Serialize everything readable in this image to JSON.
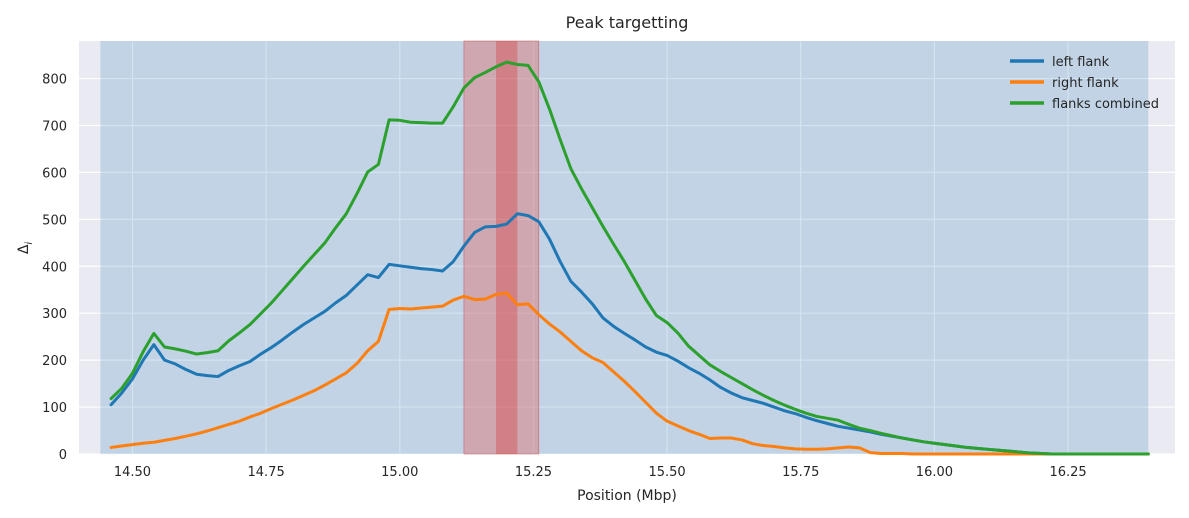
{
  "chart_data": {
    "type": "line",
    "title": "Peak targetting",
    "xlabel": "Position (Mbp)",
    "ylabel_base": "Δ",
    "ylabel_sub": "i",
    "xlim": [
      14.4,
      16.45
    ],
    "ylim": [
      0,
      880
    ],
    "xticks": [
      14.5,
      14.75,
      15.0,
      15.25,
      15.5,
      15.75,
      16.0,
      16.25
    ],
    "xtick_labels": [
      "14.50",
      "14.75",
      "15.00",
      "15.25",
      "15.50",
      "15.75",
      "16.00",
      "16.25"
    ],
    "yticks": [
      0,
      100,
      200,
      300,
      400,
      500,
      600,
      700,
      800
    ],
    "yticks_labels": [
      "0",
      "100",
      "200",
      "300",
      "400",
      "500",
      "600",
      "700",
      "800"
    ],
    "grid": true,
    "legend_position": "top-right",
    "background_color": "#EAEAF2",
    "regions": [
      {
        "name": "scan-region",
        "x0": 14.44,
        "x1": 16.4,
        "color": "#1f77b4",
        "opacity": 0.2
      },
      {
        "name": "confidence-interval",
        "x0": 15.12,
        "x1": 15.26,
        "color": "#e07070",
        "opacity": 0.45
      },
      {
        "name": "peak-interval",
        "x0": 15.18,
        "x1": 15.22,
        "color": "#d62728",
        "opacity": 0.3
      }
    ],
    "series": [
      {
        "name": "left flank",
        "color": "#1f77b4",
        "x": [
          14.46,
          14.48,
          14.5,
          14.52,
          14.54,
          14.56,
          14.58,
          14.6,
          14.62,
          14.64,
          14.66,
          14.68,
          14.7,
          14.72,
          14.74,
          14.76,
          14.78,
          14.8,
          14.82,
          14.84,
          14.86,
          14.88,
          14.9,
          14.92,
          14.94,
          14.96,
          14.98,
          15.0,
          15.02,
          15.04,
          15.06,
          15.08,
          15.1,
          15.12,
          15.14,
          15.16,
          15.18,
          15.2,
          15.22,
          15.24,
          15.26,
          15.28,
          15.3,
          15.32,
          15.34,
          15.36,
          15.38,
          15.4,
          15.42,
          15.44,
          15.46,
          15.48,
          15.5,
          15.52,
          15.54,
          15.56,
          15.58,
          15.6,
          15.62,
          15.64,
          15.66,
          15.68,
          15.7,
          15.72,
          15.74,
          15.76,
          15.78,
          15.8,
          15.82,
          15.84,
          15.86,
          15.88,
          15.9,
          15.92,
          15.94,
          15.96,
          15.98,
          16.0,
          16.02,
          16.04,
          16.06,
          16.08,
          16.1,
          16.12,
          16.14,
          16.16,
          16.18,
          16.2,
          16.22,
          16.24,
          16.26,
          16.28,
          16.3,
          16.32,
          16.34,
          16.36,
          16.38,
          16.4
        ],
        "values": [
          105,
          130,
          160,
          200,
          233,
          200,
          192,
          180,
          170,
          167,
          165,
          178,
          188,
          197,
          213,
          227,
          243,
          260,
          276,
          290,
          304,
          322,
          338,
          360,
          382,
          376,
          404,
          401,
          398,
          395,
          393,
          390,
          410,
          443,
          472,
          484,
          485,
          490,
          512,
          508,
          495,
          458,
          410,
          368,
          345,
          320,
          290,
          272,
          257,
          243,
          228,
          217,
          210,
          198,
          184,
          172,
          158,
          142,
          130,
          120,
          114,
          108,
          100,
          92,
          86,
          78,
          71,
          65,
          59,
          55,
          51,
          47,
          42,
          38,
          34,
          30,
          26,
          23,
          20,
          17,
          14,
          12,
          10,
          8,
          6,
          4,
          2,
          1,
          0,
          0,
          0,
          0,
          0,
          0,
          0,
          0,
          0,
          0
        ]
      },
      {
        "name": "right flank",
        "color": "#ff7f0e",
        "x": [
          14.46,
          14.48,
          14.5,
          14.52,
          14.54,
          14.56,
          14.58,
          14.6,
          14.62,
          14.64,
          14.66,
          14.68,
          14.7,
          14.72,
          14.74,
          14.76,
          14.78,
          14.8,
          14.82,
          14.84,
          14.86,
          14.88,
          14.9,
          14.92,
          14.94,
          14.96,
          14.98,
          15.0,
          15.02,
          15.04,
          15.06,
          15.08,
          15.1,
          15.12,
          15.14,
          15.16,
          15.18,
          15.2,
          15.22,
          15.24,
          15.26,
          15.28,
          15.3,
          15.32,
          15.34,
          15.36,
          15.38,
          15.4,
          15.42,
          15.44,
          15.46,
          15.48,
          15.5,
          15.52,
          15.54,
          15.56,
          15.58,
          15.6,
          15.62,
          15.64,
          15.66,
          15.68,
          15.7,
          15.72,
          15.74,
          15.76,
          15.78,
          15.8,
          15.82,
          15.84,
          15.86,
          15.88,
          15.9,
          15.92,
          15.94,
          15.96,
          15.98,
          16.0,
          16.02,
          16.04,
          16.06,
          16.08,
          16.1,
          16.12,
          16.14,
          16.16,
          16.18,
          16.2,
          16.22,
          16.24,
          16.26,
          16.28,
          16.3,
          16.32,
          16.34,
          16.36,
          16.38,
          16.4
        ],
        "values": [
          14,
          17,
          20,
          23,
          25,
          29,
          33,
          38,
          43,
          49,
          56,
          63,
          70,
          79,
          87,
          97,
          106,
          115,
          125,
          135,
          147,
          160,
          173,
          193,
          220,
          240,
          308,
          310,
          309,
          311,
          313,
          315,
          328,
          336,
          329,
          330,
          340,
          343,
          318,
          320,
          297,
          277,
          260,
          240,
          220,
          205,
          195,
          175,
          155,
          133,
          110,
          87,
          70,
          60,
          50,
          42,
          33,
          34,
          34,
          30,
          22,
          18,
          16,
          13,
          11,
          10,
          10,
          11,
          13,
          15,
          13,
          3,
          1,
          1,
          1,
          0,
          0,
          0,
          0,
          0,
          0,
          0,
          0,
          0,
          0,
          0,
          0,
          0,
          0,
          0,
          0,
          0,
          0,
          0,
          0,
          0,
          0,
          0
        ]
      },
      {
        "name": "flanks combined",
        "color": "#2ca02c",
        "x": [
          14.46,
          14.48,
          14.5,
          14.52,
          14.54,
          14.56,
          14.58,
          14.6,
          14.62,
          14.64,
          14.66,
          14.68,
          14.7,
          14.72,
          14.74,
          14.76,
          14.78,
          14.8,
          14.82,
          14.84,
          14.86,
          14.88,
          14.9,
          14.92,
          14.94,
          14.96,
          14.98,
          15.0,
          15.02,
          15.04,
          15.06,
          15.08,
          15.1,
          15.12,
          15.14,
          15.16,
          15.18,
          15.2,
          15.22,
          15.24,
          15.26,
          15.28,
          15.3,
          15.32,
          15.34,
          15.36,
          15.38,
          15.4,
          15.42,
          15.44,
          15.46,
          15.48,
          15.5,
          15.52,
          15.54,
          15.56,
          15.58,
          15.6,
          15.62,
          15.64,
          15.66,
          15.68,
          15.7,
          15.72,
          15.74,
          15.76,
          15.78,
          15.8,
          15.82,
          15.84,
          15.86,
          15.88,
          15.9,
          15.92,
          15.94,
          15.96,
          15.98,
          16.0,
          16.02,
          16.04,
          16.06,
          16.08,
          16.1,
          16.12,
          16.14,
          16.16,
          16.18,
          16.2,
          16.22,
          16.24,
          16.26,
          16.28,
          16.3,
          16.32,
          16.34,
          16.36,
          16.38,
          16.4
        ],
        "values": [
          118,
          140,
          172,
          218,
          257,
          228,
          224,
          219,
          213,
          216,
          220,
          241,
          258,
          276,
          299,
          322,
          348,
          374,
          400,
          425,
          450,
          482,
          512,
          555,
          601,
          617,
          712,
          711,
          707,
          706,
          705,
          705,
          740,
          780,
          802,
          813,
          825,
          835,
          830,
          828,
          793,
          735,
          670,
          608,
          565,
          525,
          485,
          447,
          410,
          370,
          330,
          295,
          280,
          258,
          230,
          210,
          190,
          176,
          163,
          150,
          137,
          125,
          114,
          104,
          95,
          87,
          80,
          76,
          72,
          63,
          55,
          50,
          44,
          39,
          34,
          30,
          26,
          23,
          20,
          17,
          14,
          12,
          10,
          8,
          6,
          4,
          2,
          1,
          0,
          0,
          0,
          0,
          0,
          0,
          0,
          0,
          0,
          0
        ]
      }
    ]
  }
}
